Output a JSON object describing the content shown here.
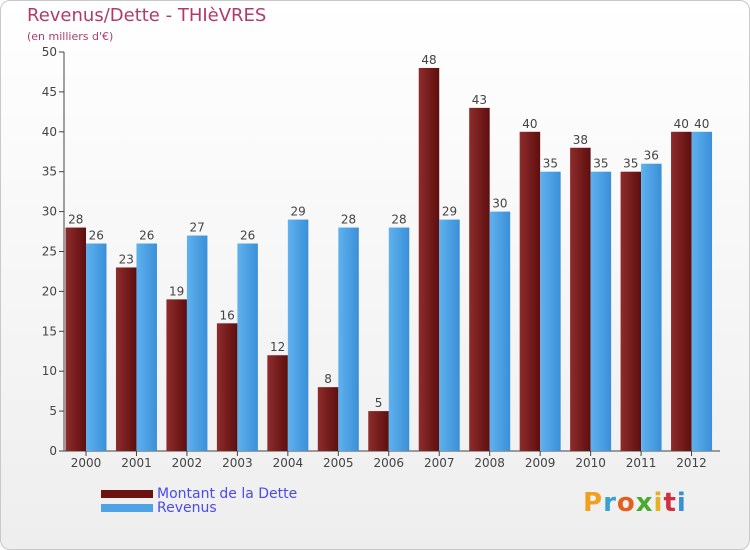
{
  "title": "Revenus/Dette - THIèVRES",
  "subtitle": "(en milliers d'€)",
  "logo_text": "Proxiti",
  "colors": {
    "dette": "#7a1a1a",
    "revenus": "#4ea3e6",
    "title": "#b23a6a",
    "legend_text": "#4a4af0"
  },
  "chart_data": {
    "type": "bar",
    "title": "Revenus/Dette - THIèVRES",
    "subtitle": "(en milliers d'€)",
    "categories": [
      "2000",
      "2001",
      "2002",
      "2003",
      "2004",
      "2005",
      "2006",
      "2007",
      "2008",
      "2009",
      "2010",
      "2011",
      "2012"
    ],
    "series": [
      {
        "name": "Montant de la Dette",
        "values": [
          28,
          23,
          19,
          16,
          12,
          8,
          5,
          48,
          43,
          40,
          38,
          35,
          40
        ]
      },
      {
        "name": "Revenus",
        "values": [
          26,
          26,
          27,
          26,
          29,
          28,
          28,
          29,
          30,
          35,
          35,
          36,
          40
        ]
      }
    ],
    "ylim": [
      0,
      50
    ],
    "yticks": [
      0,
      5,
      10,
      15,
      20,
      25,
      30,
      35,
      40,
      45,
      50
    ],
    "grid": false,
    "legend": "bottom-left"
  }
}
